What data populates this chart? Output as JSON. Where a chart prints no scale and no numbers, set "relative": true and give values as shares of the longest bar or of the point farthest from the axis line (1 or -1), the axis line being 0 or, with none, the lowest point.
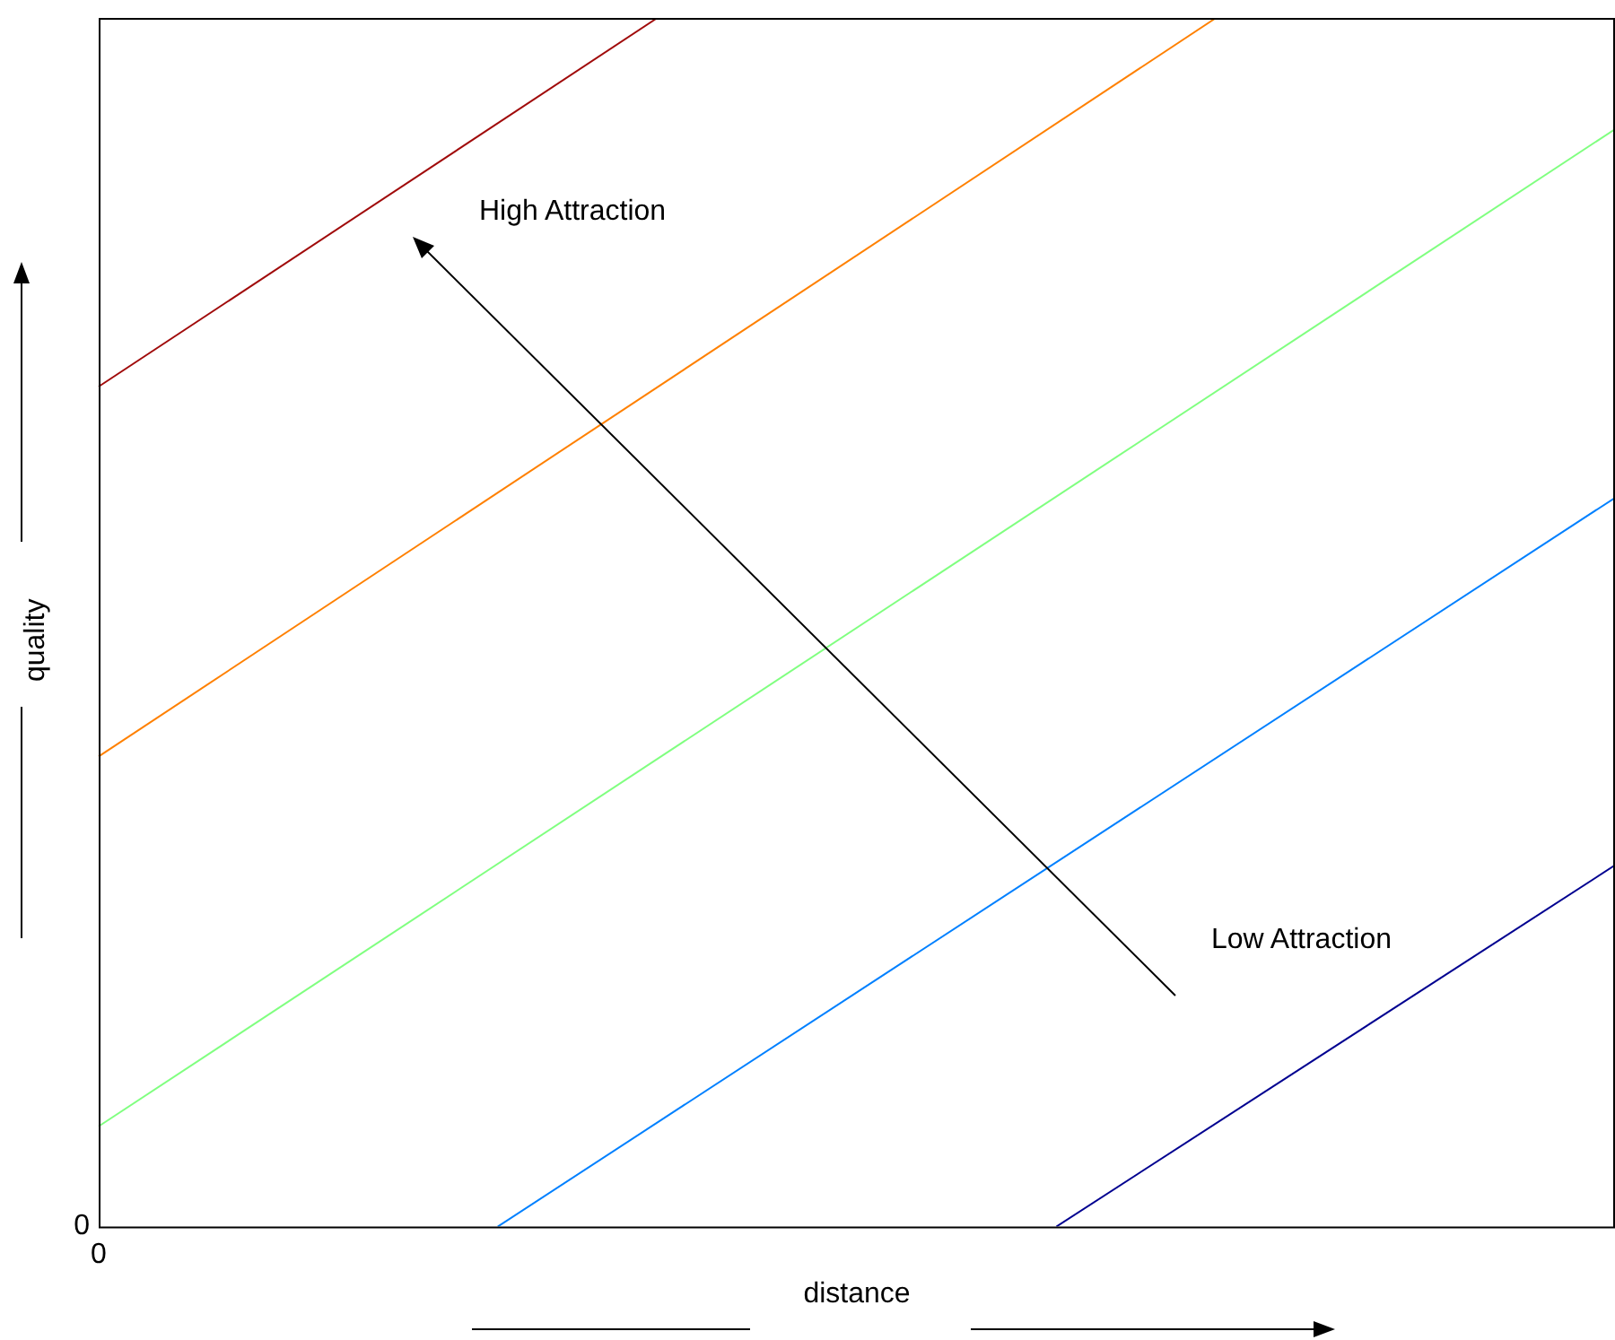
{
  "chart_data": {
    "type": "line",
    "xlabel": "distance",
    "ylabel": "quality",
    "relative": true,
    "legend": false,
    "marker": "none",
    "line_style": "solid",
    "annotations": [
      "High Attraction",
      "Low Attraction",
      "0",
      "0"
    ],
    "categories": [
      null,
      null,
      null,
      null,
      null,
      null,
      null,
      null,
      null,
      null,
      null,
      null,
      null,
      null,
      null,
      null,
      null,
      null,
      null,
      null
    ],
    "series": [
      {
        "color": "#a00a0a",
        "values": [
          0.695,
          null,
          null,
          null,
          null,
          null,
          null,
          1,
          null,
          null,
          null,
          null,
          null,
          null,
          null,
          null,
          null,
          null,
          null,
          null
        ]
      },
      {
        "color": "#ff8000",
        "values": [
          0.389,
          null,
          null,
          null,
          null,
          null,
          null,
          null,
          null,
          null,
          null,
          null,
          null,
          null,
          1,
          null,
          null,
          null,
          null,
          null
        ]
      },
      {
        "color": "#80ff80",
        "values": [
          0.083,
          null,
          null,
          null,
          null,
          null,
          null,
          null,
          null,
          null,
          null,
          null,
          null,
          null,
          null,
          null,
          null,
          null,
          null,
          0.908
        ]
      },
      {
        "color": "#0080ff",
        "values": [
          null,
          null,
          null,
          null,
          null,
          0,
          null,
          null,
          null,
          null,
          null,
          null,
          null,
          null,
          null,
          null,
          null,
          null,
          null,
          0.603
        ]
      },
      {
        "color": "#000090",
        "values": [
          null,
          null,
          null,
          null,
          null,
          null,
          null,
          null,
          null,
          null,
          null,
          null,
          0,
          null,
          null,
          null,
          null,
          null,
          null,
          0.299
        ]
      }
    ]
  }
}
